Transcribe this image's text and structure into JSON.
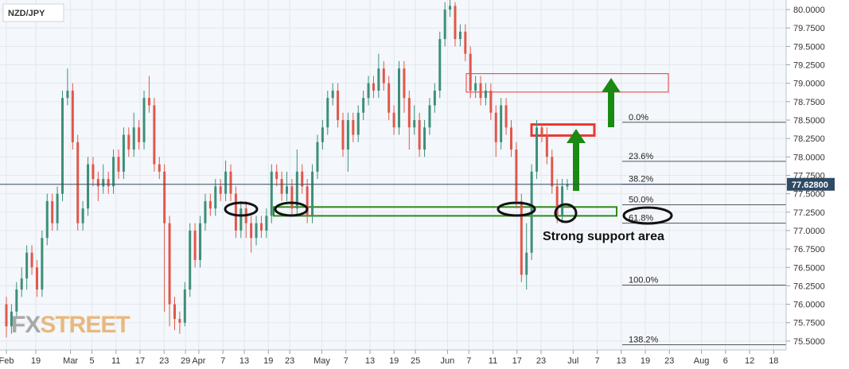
{
  "symbol": "NZD/JPY",
  "watermark": {
    "part1": "FX",
    "part2": "STREET"
  },
  "annotation": "Strong support area",
  "chart_data": {
    "type": "candlestick",
    "ylim": [
      75.38,
      80.13
    ],
    "grid": true,
    "current_price": 77.628,
    "current_price_label": "77.62800",
    "y_ticks": [
      {
        "v": 80.0,
        "label": "80.0000"
      },
      {
        "v": 79.75,
        "label": "79.7500"
      },
      {
        "v": 79.5,
        "label": "79.5000"
      },
      {
        "v": 79.25,
        "label": "79.2500"
      },
      {
        "v": 79.0,
        "label": "79.0000"
      },
      {
        "v": 78.75,
        "label": "78.7500"
      },
      {
        "v": 78.5,
        "label": "78.5000"
      },
      {
        "v": 78.25,
        "label": "78.2500"
      },
      {
        "v": 78.0,
        "label": "78.0000"
      },
      {
        "v": 77.75,
        "label": "77.7500"
      },
      {
        "v": 77.5,
        "label": "77.5000"
      },
      {
        "v": 77.25,
        "label": "77.2500"
      },
      {
        "v": 77.0,
        "label": "77.0000"
      },
      {
        "v": 76.75,
        "label": "76.7500"
      },
      {
        "v": 76.5,
        "label": "76.5000"
      },
      {
        "v": 76.25,
        "label": "76.2500"
      },
      {
        "v": 76.0,
        "label": "76.0000"
      },
      {
        "v": 75.75,
        "label": "75.7500"
      },
      {
        "v": 75.5,
        "label": "75.5000"
      }
    ],
    "x_ticks": [
      {
        "i": 0,
        "label": "Feb"
      },
      {
        "i": 11,
        "label": "19"
      },
      {
        "i": 24,
        "label": "Mar"
      },
      {
        "i": 32,
        "label": "5"
      },
      {
        "i": 41,
        "label": "11"
      },
      {
        "i": 50,
        "label": "17"
      },
      {
        "i": 59,
        "label": "23"
      },
      {
        "i": 67,
        "label": "29"
      },
      {
        "i": 72,
        "label": "Apr"
      },
      {
        "i": 81,
        "label": "7"
      },
      {
        "i": 89,
        "label": "13"
      },
      {
        "i": 98,
        "label": "19"
      },
      {
        "i": 106,
        "label": "23"
      },
      {
        "i": 118,
        "label": "May"
      },
      {
        "i": 127,
        "label": "7"
      },
      {
        "i": 136,
        "label": "13"
      },
      {
        "i": 145,
        "label": "19"
      },
      {
        "i": 153,
        "label": "25"
      },
      {
        "i": 165,
        "label": "Jun"
      },
      {
        "i": 173,
        "label": "7"
      },
      {
        "i": 182,
        "label": "11"
      },
      {
        "i": 191,
        "label": "17"
      },
      {
        "i": 200,
        "label": "23"
      },
      {
        "i": 212,
        "label": "Jul"
      },
      {
        "i": 221,
        "label": "7"
      },
      {
        "i": 230,
        "label": "13"
      },
      {
        "i": 239,
        "label": "19"
      },
      {
        "i": 248,
        "label": "23"
      },
      {
        "i": 260,
        "label": "Aug"
      },
      {
        "i": 269,
        "label": "6"
      },
      {
        "i": 278,
        "label": "12"
      },
      {
        "i": 287,
        "label": "18"
      }
    ],
    "fibonacci": [
      {
        "label": "0.0%",
        "value": 78.47
      },
      {
        "label": "23.6%",
        "value": 77.94
      },
      {
        "label": "38.2%",
        "value": 77.63
      },
      {
        "label": "50.0%",
        "value": 77.35
      },
      {
        "label": "61.8%",
        "value": 77.1
      },
      {
        "label": "100.0%",
        "value": 76.26
      },
      {
        "label": "138.2%",
        "value": 75.45
      }
    ],
    "zones": [
      {
        "type": "resistance",
        "from": 78.88,
        "to": 79.13
      },
      {
        "type": "resistance",
        "from": 78.29,
        "to": 78.44
      },
      {
        "type": "support",
        "from": 77.2,
        "to": 77.32
      }
    ],
    "candles": [
      [
        76.0,
        75.7,
        76.1,
        75.55
      ],
      [
        75.7,
        75.9,
        76.0,
        75.6
      ],
      [
        75.9,
        76.2,
        76.3,
        75.8
      ],
      [
        76.2,
        76.35,
        76.5,
        76.1
      ],
      [
        76.35,
        76.7,
        76.8,
        76.2
      ],
      [
        76.7,
        76.5,
        76.8,
        76.4
      ],
      [
        76.5,
        76.2,
        76.6,
        76.1
      ],
      [
        76.2,
        76.9,
        77.0,
        76.1
      ],
      [
        76.9,
        77.4,
        77.5,
        76.8
      ],
      [
        77.4,
        77.1,
        77.5,
        77.0
      ],
      [
        77.1,
        77.5,
        77.6,
        77.0
      ],
      [
        77.5,
        78.8,
        78.9,
        77.4
      ],
      [
        78.8,
        78.9,
        79.2,
        78.7
      ],
      [
        78.9,
        78.2,
        79.0,
        78.1
      ],
      [
        78.2,
        77.1,
        78.3,
        77.0
      ],
      [
        77.1,
        77.3,
        77.4,
        77.0
      ],
      [
        77.3,
        77.9,
        78.0,
        77.2
      ],
      [
        77.9,
        77.7,
        78.0,
        77.6
      ],
      [
        77.7,
        77.6,
        77.8,
        77.4
      ],
      [
        77.6,
        77.7,
        77.9,
        77.5
      ],
      [
        77.7,
        77.6,
        77.8,
        77.5
      ],
      [
        77.6,
        78.0,
        78.1,
        77.5
      ],
      [
        78.0,
        77.8,
        78.1,
        77.7
      ],
      [
        77.8,
        78.3,
        78.4,
        77.7
      ],
      [
        78.3,
        78.1,
        78.4,
        78.0
      ],
      [
        78.1,
        78.4,
        78.6,
        78.0
      ],
      [
        78.4,
        78.2,
        78.5,
        78.1
      ],
      [
        78.2,
        78.8,
        78.9,
        78.1
      ],
      [
        78.8,
        78.7,
        79.1,
        78.6
      ],
      [
        78.7,
        77.9,
        78.8,
        77.8
      ],
      [
        77.9,
        77.8,
        78.0,
        77.7
      ],
      [
        77.8,
        77.1,
        77.9,
        75.9
      ],
      [
        77.1,
        76.0,
        77.2,
        75.7
      ],
      [
        76.0,
        75.8,
        76.1,
        75.65
      ],
      [
        75.8,
        75.75,
        75.9,
        75.6
      ],
      [
        75.75,
        76.2,
        76.3,
        75.7
      ],
      [
        76.2,
        77.0,
        77.1,
        76.1
      ],
      [
        77.0,
        76.6,
        77.1,
        76.5
      ],
      [
        76.6,
        77.1,
        77.2,
        76.5
      ],
      [
        77.1,
        77.4,
        77.5,
        77.0
      ],
      [
        77.4,
        77.3,
        77.5,
        77.2
      ],
      [
        77.3,
        77.6,
        77.7,
        77.2
      ],
      [
        77.6,
        77.5,
        77.7,
        77.4
      ],
      [
        77.5,
        77.8,
        77.95,
        77.4
      ],
      [
        77.8,
        77.5,
        77.9,
        77.4
      ],
      [
        77.5,
        77.0,
        77.6,
        76.9
      ],
      [
        77.0,
        77.3,
        77.4,
        76.9
      ],
      [
        77.3,
        77.1,
        77.4,
        76.9
      ],
      [
        77.1,
        76.9,
        77.2,
        76.7
      ],
      [
        76.9,
        77.1,
        77.2,
        76.8
      ],
      [
        77.1,
        77.0,
        77.2,
        76.9
      ],
      [
        77.0,
        77.2,
        77.3,
        76.9
      ],
      [
        77.2,
        77.8,
        77.9,
        77.1
      ],
      [
        77.8,
        77.7,
        77.9,
        77.6
      ],
      [
        77.7,
        77.5,
        77.8,
        77.4
      ],
      [
        77.5,
        77.6,
        77.8,
        77.4
      ],
      [
        77.6,
        77.3,
        77.7,
        77.2
      ],
      [
        77.3,
        77.8,
        78.1,
        77.2
      ],
      [
        77.8,
        77.6,
        77.9,
        77.5
      ],
      [
        77.6,
        77.2,
        77.7,
        77.1
      ],
      [
        77.2,
        77.8,
        77.9,
        77.1
      ],
      [
        77.8,
        78.2,
        78.3,
        77.7
      ],
      [
        78.2,
        78.4,
        78.5,
        78.1
      ],
      [
        78.4,
        78.8,
        78.9,
        78.3
      ],
      [
        78.8,
        78.9,
        79.0,
        78.7
      ],
      [
        78.9,
        78.5,
        79.0,
        78.4
      ],
      [
        78.5,
        78.1,
        78.6,
        78.0
      ],
      [
        78.1,
        78.5,
        78.6,
        77.8
      ],
      [
        78.5,
        78.3,
        78.6,
        78.2
      ],
      [
        78.3,
        78.6,
        78.7,
        78.2
      ],
      [
        78.6,
        78.8,
        78.9,
        78.5
      ],
      [
        78.8,
        79.0,
        79.1,
        78.7
      ],
      [
        79.0,
        78.9,
        79.1,
        78.8
      ],
      [
        78.9,
        79.2,
        79.4,
        78.8
      ],
      [
        79.2,
        79.0,
        79.3,
        78.9
      ],
      [
        79.0,
        78.6,
        79.1,
        78.5
      ],
      [
        78.6,
        78.4,
        78.7,
        78.3
      ],
      [
        78.4,
        79.2,
        79.3,
        78.3
      ],
      [
        79.2,
        78.8,
        79.3,
        78.6
      ],
      [
        78.8,
        78.4,
        78.9,
        78.1
      ],
      [
        78.4,
        78.5,
        78.7,
        78.3
      ],
      [
        78.5,
        78.1,
        78.6,
        78.0
      ],
      [
        78.1,
        78.4,
        78.5,
        78.0
      ],
      [
        78.4,
        78.7,
        78.8,
        78.3
      ],
      [
        78.7,
        78.9,
        79.0,
        78.6
      ],
      [
        78.9,
        79.6,
        79.7,
        78.8
      ],
      [
        79.6,
        80.0,
        80.1,
        79.5
      ],
      [
        80.0,
        80.05,
        80.15,
        79.9
      ],
      [
        80.05,
        79.6,
        80.1,
        79.5
      ],
      [
        79.6,
        79.7,
        79.8,
        79.5
      ],
      [
        79.7,
        79.4,
        79.8,
        79.3
      ],
      [
        79.4,
        78.9,
        79.5,
        78.8
      ],
      [
        78.9,
        79.0,
        79.1,
        78.8
      ],
      [
        79.0,
        78.8,
        79.1,
        78.7
      ],
      [
        78.8,
        78.9,
        79.0,
        78.7
      ],
      [
        78.9,
        78.6,
        79.0,
        78.5
      ],
      [
        78.6,
        78.2,
        78.7,
        78.0
      ],
      [
        78.2,
        78.7,
        78.8,
        78.1
      ],
      [
        78.7,
        78.4,
        78.8,
        78.3
      ],
      [
        78.4,
        78.1,
        78.5,
        78.0
      ],
      [
        78.1,
        77.4,
        78.2,
        77.3
      ],
      [
        77.4,
        76.4,
        77.5,
        76.3
      ],
      [
        76.4,
        76.7,
        77.1,
        76.2
      ],
      [
        76.7,
        77.8,
        77.9,
        76.6
      ],
      [
        77.8,
        78.4,
        78.5,
        77.7
      ],
      [
        78.4,
        78.3,
        78.45,
        78.2
      ],
      [
        78.3,
        78.0,
        78.4,
        77.9
      ],
      [
        78.0,
        77.6,
        78.1,
        77.5
      ],
      [
        77.6,
        77.2,
        77.7,
        77.1
      ],
      [
        77.2,
        77.6,
        77.7,
        77.1
      ],
      [
        77.6,
        77.628,
        77.7,
        77.55
      ]
    ]
  }
}
